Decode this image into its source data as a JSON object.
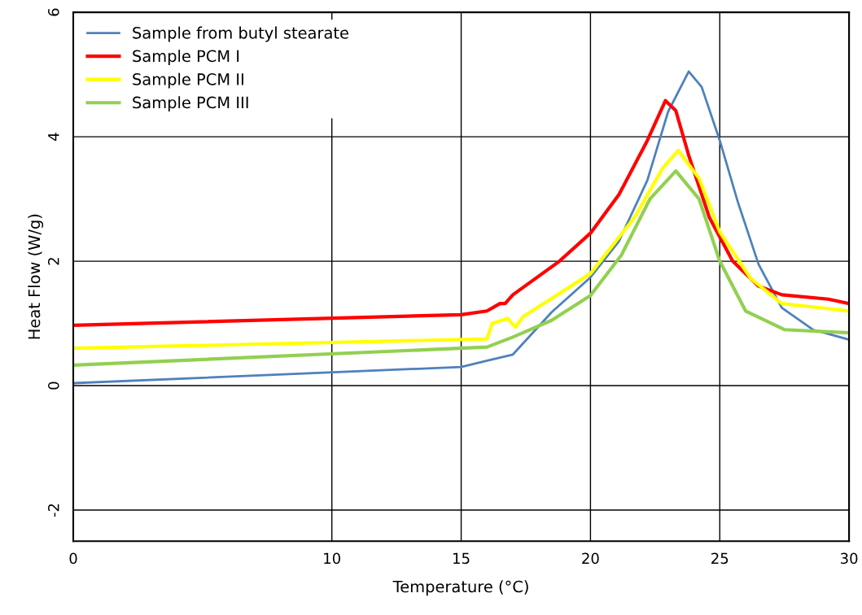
{
  "chart_data": {
    "type": "line",
    "xlabel": "Temperature (°C)",
    "ylabel": "Heat Flow (W/g)",
    "xlim": [
      0,
      30
    ],
    "xticks": [
      0,
      10,
      15,
      20,
      25,
      30
    ],
    "ylim": [
      -2.5,
      6
    ],
    "yticks": [
      -2,
      0,
      2,
      4,
      6
    ],
    "grid": true,
    "legend": "top left",
    "marker": "none",
    "line_style": "solid",
    "series": [
      {
        "name": "Sample from butyl stearate",
        "color": "#4f81bd",
        "x": [
          0,
          15,
          16,
          17,
          18.5,
          20,
          21.1,
          22.2,
          23,
          23.8,
          24.3,
          25,
          25.7,
          26.5,
          27.4,
          28.6,
          30
        ],
        "values": [
          0.04,
          0.3,
          0.4,
          0.5,
          1.18,
          1.74,
          2.32,
          3.3,
          4.4,
          5.05,
          4.8,
          3.94,
          2.95,
          1.95,
          1.25,
          0.9,
          0.74
        ]
      },
      {
        "name": "Sample PCM I",
        "color": "#ff0000",
        "x": [
          0,
          15,
          16,
          16.5,
          16.7,
          17,
          18.8,
          20,
          21.1,
          22.2,
          22.9,
          23.3,
          23.8,
          24.6,
          25.5,
          26.5,
          27.4,
          29.2,
          30
        ],
        "values": [
          0.97,
          1.14,
          1.2,
          1.32,
          1.32,
          1.46,
          2.0,
          2.45,
          3.07,
          3.94,
          4.58,
          4.42,
          3.7,
          2.7,
          2.0,
          1.6,
          1.46,
          1.39,
          1.32
        ]
      },
      {
        "name": "Sample PCM II",
        "color": "#ffff00",
        "x": [
          0,
          16,
          16.2,
          16.8,
          17.1,
          17.4,
          20,
          21.7,
          22.8,
          23.4,
          24.2,
          25,
          26.2,
          27.4,
          30
        ],
        "values": [
          0.6,
          0.75,
          1.0,
          1.08,
          0.94,
          1.11,
          1.8,
          2.7,
          3.5,
          3.78,
          3.33,
          2.47,
          1.72,
          1.32,
          1.2
        ]
      },
      {
        "name": "Sample PCM III",
        "color": "#92d050",
        "x": [
          0,
          16,
          17,
          18.5,
          20,
          21.2,
          22.3,
          23.3,
          24.2,
          25,
          26,
          27.5,
          30
        ],
        "values": [
          0.33,
          0.62,
          0.78,
          1.05,
          1.45,
          2.1,
          3.0,
          3.45,
          3.0,
          2.0,
          1.2,
          0.9,
          0.85
        ]
      }
    ]
  }
}
